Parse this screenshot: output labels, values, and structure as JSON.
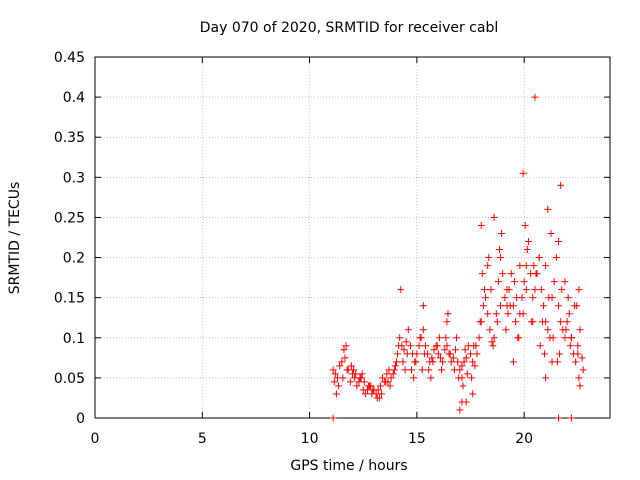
{
  "chart_data": {
    "type": "scatter",
    "title": "Day 070 of 2020, SRMTID for receiver cabl",
    "xlabel": "GPS time / hours",
    "ylabel": "SRMTID / TECUs",
    "xlim": [
      0,
      24
    ],
    "ylim": [
      0,
      0.45
    ],
    "x_ticks": [
      0,
      5,
      10,
      15,
      20
    ],
    "x_tick_labels": [
      "0",
      "5",
      "10",
      "15",
      "20"
    ],
    "y_ticks": [
      0,
      0.05,
      0.1,
      0.15,
      0.2,
      0.25,
      0.3,
      0.35,
      0.4,
      0.45
    ],
    "y_tick_labels": [
      "0",
      "0.05",
      "0.1",
      "0.15",
      "0.2",
      "0.25",
      "0.3",
      "0.35",
      "0.4",
      "0.45"
    ],
    "grid": true,
    "marker": "+",
    "series": [
      {
        "name": "SRMTID",
        "color": "#ff0000",
        "x": [
          11.1,
          11.2,
          11.3,
          11.4,
          11.5,
          11.6,
          11.7,
          11.8,
          11.9,
          12.0,
          12.1,
          12.2,
          12.3,
          12.4,
          12.5,
          12.6,
          12.7,
          12.8,
          12.9,
          13.0,
          13.1,
          13.2,
          13.3,
          13.4,
          13.5,
          13.6,
          13.7,
          13.8,
          13.9,
          14.0,
          14.1,
          14.2,
          14.3,
          14.4,
          14.5,
          14.6,
          14.7,
          14.8,
          14.9,
          15.0,
          15.1,
          15.2,
          15.3,
          15.4,
          15.5,
          15.6,
          15.7,
          15.8,
          15.9,
          16.0,
          16.1,
          16.2,
          16.3,
          16.4,
          16.5,
          16.6,
          16.7,
          16.8,
          16.9,
          17.0,
          17.1,
          17.2,
          17.3,
          17.4,
          17.5,
          17.6,
          17.7,
          17.8,
          17.9,
          18.0,
          18.1,
          18.2,
          18.3,
          18.4,
          18.5,
          18.6,
          18.7,
          18.8,
          18.9,
          19.0,
          19.1,
          19.2,
          19.3,
          19.4,
          19.5,
          19.6,
          19.7,
          19.8,
          19.9,
          20.0,
          20.1,
          20.2,
          20.3,
          20.4,
          20.5,
          20.6,
          20.7,
          20.8,
          20.9,
          21.0,
          21.1,
          21.2,
          21.3,
          21.4,
          21.5,
          21.6,
          21.7,
          21.8,
          21.9,
          22.0,
          22.1,
          22.2,
          22.3,
          22.4,
          22.5,
          22.6,
          22.7,
          11.15,
          11.35,
          11.55,
          11.75,
          11.95,
          12.15,
          12.35,
          12.55,
          12.75,
          12.95,
          13.15,
          13.35,
          13.55,
          13.75,
          13.95,
          14.15,
          14.35,
          14.55,
          14.75,
          14.95,
          15.15,
          15.35,
          15.55,
          15.75,
          15.95,
          16.15,
          16.35,
          16.55,
          16.75,
          16.95,
          17.15,
          17.35,
          17.55,
          17.75,
          17.95,
          18.15,
          18.35,
          18.55,
          18.75,
          18.95,
          19.15,
          19.35,
          19.55,
          19.75,
          19.95,
          20.15,
          20.35,
          20.55,
          20.75,
          20.95,
          21.15,
          21.35,
          21.55,
          21.75,
          21.95,
          22.15,
          22.35,
          22.55,
          22.75,
          11.25,
          11.65,
          12.05,
          12.45,
          12.85,
          13.25,
          13.65,
          14.05,
          14.45,
          14.85,
          15.25,
          15.65,
          16.05,
          16.45,
          16.85,
          17.25,
          17.65,
          18.05,
          18.45,
          18.85,
          19.25,
          19.65,
          20.05,
          20.45,
          20.85,
          21.25,
          21.65,
          22.05,
          22.45,
          18.0,
          18.3,
          18.6,
          18.9,
          19.2,
          19.5,
          19.8,
          20.1,
          20.4,
          20.7,
          21.0,
          21.3,
          21.6,
          21.9,
          22.2,
          22.5,
          14.25,
          15.3,
          16.4,
          17.1,
          17.6,
          19.95,
          20.5,
          21.7,
          22.55,
          17.0,
          17.1,
          17.3,
          21.0,
          21.1,
          22.6,
          11.1,
          22.2,
          21.6
        ],
        "y": [
          0.06,
          0.055,
          0.05,
          0.065,
          0.07,
          0.085,
          0.09,
          0.06,
          0.045,
          0.055,
          0.05,
          0.04,
          0.045,
          0.05,
          0.035,
          0.03,
          0.035,
          0.04,
          0.03,
          0.035,
          0.03,
          0.035,
          0.04,
          0.05,
          0.045,
          0.055,
          0.06,
          0.05,
          0.055,
          0.065,
          0.08,
          0.1,
          0.09,
          0.085,
          0.095,
          0.11,
          0.09,
          0.08,
          0.07,
          0.08,
          0.09,
          0.1,
          0.11,
          0.09,
          0.08,
          0.07,
          0.075,
          0.085,
          0.09,
          0.08,
          0.075,
          0.07,
          0.085,
          0.09,
          0.08,
          0.07,
          0.075,
          0.085,
          0.07,
          0.06,
          0.065,
          0.07,
          0.075,
          0.09,
          0.08,
          0.07,
          0.065,
          0.08,
          0.1,
          0.12,
          0.14,
          0.15,
          0.13,
          0.11,
          0.095,
          0.1,
          0.13,
          0.17,
          0.2,
          0.18,
          0.15,
          0.14,
          0.16,
          0.18,
          0.14,
          0.12,
          0.1,
          0.13,
          0.15,
          0.17,
          0.19,
          0.22,
          0.18,
          0.15,
          0.16,
          0.18,
          0.2,
          0.16,
          0.14,
          0.12,
          0.11,
          0.1,
          0.15,
          0.17,
          0.2,
          0.14,
          0.12,
          0.11,
          0.1,
          0.12,
          0.13,
          0.1,
          0.08,
          0.07,
          0.09,
          0.11,
          0.075,
          0.045,
          0.04,
          0.05,
          0.06,
          0.065,
          0.055,
          0.05,
          0.045,
          0.04,
          0.035,
          0.025,
          0.03,
          0.045,
          0.04,
          0.06,
          0.09,
          0.07,
          0.08,
          0.06,
          0.07,
          0.1,
          0.08,
          0.06,
          0.07,
          0.09,
          0.06,
          0.1,
          0.08,
          0.06,
          0.05,
          0.04,
          0.055,
          0.05,
          0.09,
          0.12,
          0.16,
          0.2,
          0.09,
          0.12,
          0.23,
          0.11,
          0.14,
          0.17,
          0.1,
          0.13,
          0.21,
          0.12,
          0.18,
          0.09,
          0.08,
          0.15,
          0.1,
          0.07,
          0.16,
          0.11,
          0.09,
          0.14,
          0.05,
          0.06,
          0.03,
          0.075,
          0.06,
          0.055,
          0.04,
          0.025,
          0.045,
          0.07,
          0.06,
          0.05,
          0.06,
          0.05,
          0.1,
          0.13,
          0.1,
          0.085,
          0.09,
          0.18,
          0.16,
          0.21,
          0.13,
          0.15,
          0.24,
          0.19,
          0.12,
          0.23,
          0.08,
          0.15,
          0.14,
          0.24,
          0.19,
          0.25,
          0.14,
          0.16,
          0.07,
          0.19,
          0.16,
          0.12,
          0.2,
          0.05,
          0.07,
          0.22,
          0.17,
          0.1,
          0.08,
          0.16,
          0.14,
          0.12,
          0.02,
          0.03,
          0.305,
          0.4,
          0.29,
          0.16,
          0.01,
          0.05,
          0.02,
          0.19,
          0.26,
          0.04,
          0.0,
          0.0,
          0.0
        ]
      }
    ]
  }
}
